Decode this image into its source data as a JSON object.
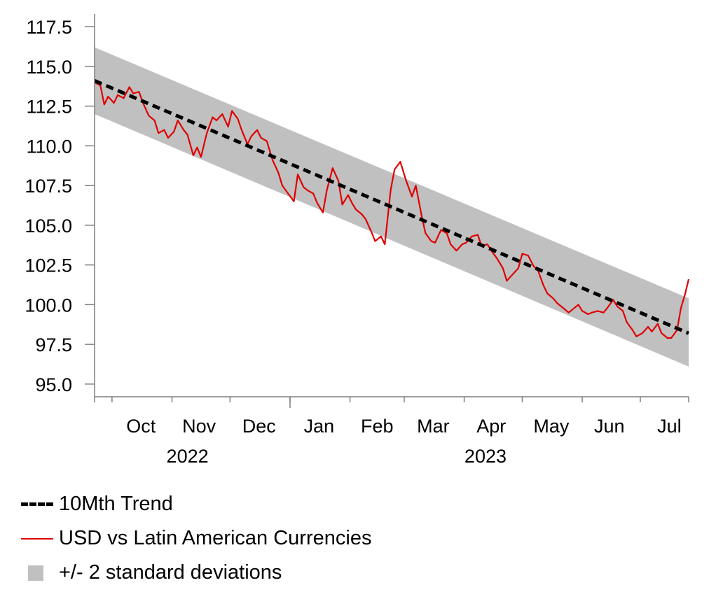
{
  "chart_data": {
    "type": "line",
    "ylim": [
      94.2,
      118.3
    ],
    "y_ticks": [
      "95.0",
      "97.5",
      "100.0",
      "102.5",
      "105.0",
      "107.5",
      "110.0",
      "112.5",
      "115.0",
      "117.5"
    ],
    "y_tick_values": [
      95.0,
      97.5,
      100.0,
      102.5,
      105.0,
      107.5,
      110.0,
      112.5,
      115.0,
      117.5
    ],
    "x_range": [
      "2022-09-22",
      "2023-07-26"
    ],
    "month_labels": [
      "Oct",
      "Nov",
      "Dec",
      "Jan",
      "Feb",
      "Mar",
      "Apr",
      "May",
      "Jun",
      "Jul"
    ],
    "month_label_dates": [
      "2022-10-16",
      "2022-11-15",
      "2022-12-16",
      "2023-01-16",
      "2023-02-15",
      "2023-03-16",
      "2023-04-15",
      "2023-05-16",
      "2023-06-15",
      "2023-07-16"
    ],
    "month_tick_dates": [
      "2022-10-01",
      "2022-11-01",
      "2022-12-01",
      "2023-01-01",
      "2023-02-01",
      "2023-03-01",
      "2023-04-01",
      "2023-05-01",
      "2023-06-01",
      "2023-07-01"
    ],
    "year_labels": [
      "2022",
      "2023"
    ],
    "year_label_dates": [
      "2022-11-09",
      "2023-04-12"
    ],
    "year_divider_date": "2023-01-01",
    "legend": [
      "10Mth Trend",
      "USD vs Latin American Currencies",
      "+/- 2 standard deviations"
    ],
    "colors": {
      "trend": "#000000",
      "series": "#e00000",
      "band": "#c0c0c0"
    },
    "grid": false,
    "legend_position": "bottom",
    "series": [
      {
        "name": "10Mth Trend",
        "style": "dashed",
        "x": [
          "2022-09-22",
          "2023-07-26"
        ],
        "values": [
          114.1,
          98.2
        ]
      },
      {
        "name": "+/- 2 standard deviations",
        "style": "band",
        "x": [
          "2022-09-22",
          "2023-07-26"
        ],
        "upper": [
          116.2,
          100.4
        ],
        "lower": [
          112.0,
          96.1
        ]
      },
      {
        "name": "USD vs Latin American Currencies",
        "style": "line",
        "x": [
          "2022-09-22",
          "2022-09-25",
          "2022-09-27",
          "2022-09-29",
          "2022-10-02",
          "2022-10-04",
          "2022-10-07",
          "2022-10-10",
          "2022-10-12",
          "2022-10-15",
          "2022-10-17",
          "2022-10-20",
          "2022-10-23",
          "2022-10-25",
          "2022-10-28",
          "2022-10-30",
          "2022-11-02",
          "2022-11-04",
          "2022-11-07",
          "2022-11-09",
          "2022-11-12",
          "2022-11-14",
          "2022-11-16",
          "2022-11-19",
          "2022-11-22",
          "2022-11-24",
          "2022-11-27",
          "2022-11-30",
          "2022-12-02",
          "2022-12-05",
          "2022-12-07",
          "2022-12-10",
          "2022-12-12",
          "2022-12-15",
          "2022-12-17",
          "2022-12-20",
          "2022-12-23",
          "2022-12-26",
          "2022-12-28",
          "2022-12-31",
          "2023-01-03",
          "2023-01-05",
          "2023-01-08",
          "2023-01-10",
          "2023-01-13",
          "2023-01-15",
          "2023-01-18",
          "2023-01-20",
          "2023-01-23",
          "2023-01-26",
          "2023-01-28",
          "2023-01-31",
          "2023-02-02",
          "2023-02-04",
          "2023-02-07",
          "2023-02-09",
          "2023-02-12",
          "2023-02-14",
          "2023-02-17",
          "2023-02-19",
          "2023-02-22",
          "2023-02-24",
          "2023-02-27",
          "2023-03-02",
          "2023-03-05",
          "2023-03-07",
          "2023-03-10",
          "2023-03-12",
          "2023-03-15",
          "2023-03-17",
          "2023-03-20",
          "2023-03-23",
          "2023-03-25",
          "2023-03-28",
          "2023-03-31",
          "2023-04-02",
          "2023-04-05",
          "2023-04-08",
          "2023-04-10",
          "2023-04-13",
          "2023-04-15",
          "2023-04-18",
          "2023-04-21",
          "2023-04-23",
          "2023-04-26",
          "2023-04-29",
          "2023-05-01",
          "2023-05-04",
          "2023-05-07",
          "2023-05-09",
          "2023-05-12",
          "2023-05-14",
          "2023-05-17",
          "2023-05-19",
          "2023-05-22",
          "2023-05-25",
          "2023-05-27",
          "2023-05-30",
          "2023-06-01",
          "2023-06-04",
          "2023-06-06",
          "2023-06-09",
          "2023-06-12",
          "2023-06-14",
          "2023-06-17",
          "2023-06-19",
          "2023-06-22",
          "2023-06-24",
          "2023-06-27",
          "2023-06-29",
          "2023-07-02",
          "2023-07-05",
          "2023-07-07",
          "2023-07-10",
          "2023-07-12",
          "2023-07-15",
          "2023-07-17",
          "2023-07-20",
          "2023-07-22",
          "2023-07-24",
          "2023-07-26"
        ],
        "values": [
          114.0,
          113.8,
          112.6,
          113.1,
          112.7,
          113.2,
          113.0,
          113.7,
          113.3,
          113.4,
          112.7,
          111.9,
          111.6,
          110.8,
          111.0,
          110.5,
          110.9,
          111.6,
          111.0,
          110.7,
          109.4,
          109.9,
          109.3,
          110.8,
          111.8,
          111.6,
          112.0,
          111.2,
          112.2,
          111.7,
          111.0,
          110.1,
          110.6,
          111.0,
          110.5,
          110.3,
          109.1,
          108.3,
          107.5,
          107.0,
          106.5,
          108.2,
          107.4,
          107.2,
          107.0,
          106.4,
          105.8,
          107.2,
          108.6,
          107.8,
          106.3,
          106.9,
          106.4,
          106.0,
          105.7,
          105.4,
          104.6,
          104.0,
          104.3,
          103.8,
          107.2,
          108.5,
          109.0,
          107.8,
          106.8,
          107.5,
          105.6,
          104.5,
          104.0,
          103.9,
          104.7,
          104.5,
          103.8,
          103.4,
          103.8,
          103.9,
          104.3,
          104.4,
          103.7,
          103.8,
          103.4,
          102.9,
          102.3,
          101.5,
          101.9,
          102.3,
          103.2,
          103.1,
          102.4,
          102.2,
          101.2,
          100.7,
          100.4,
          100.1,
          99.8,
          99.5,
          99.7,
          100.0,
          99.6,
          99.4,
          99.5,
          99.6,
          99.5,
          99.8,
          100.3,
          99.9,
          99.6,
          98.9,
          98.4,
          98.0,
          98.2,
          98.6,
          98.3,
          98.8,
          98.2,
          97.9,
          97.9,
          98.4,
          99.8,
          100.6,
          101.6
        ]
      }
    ]
  }
}
